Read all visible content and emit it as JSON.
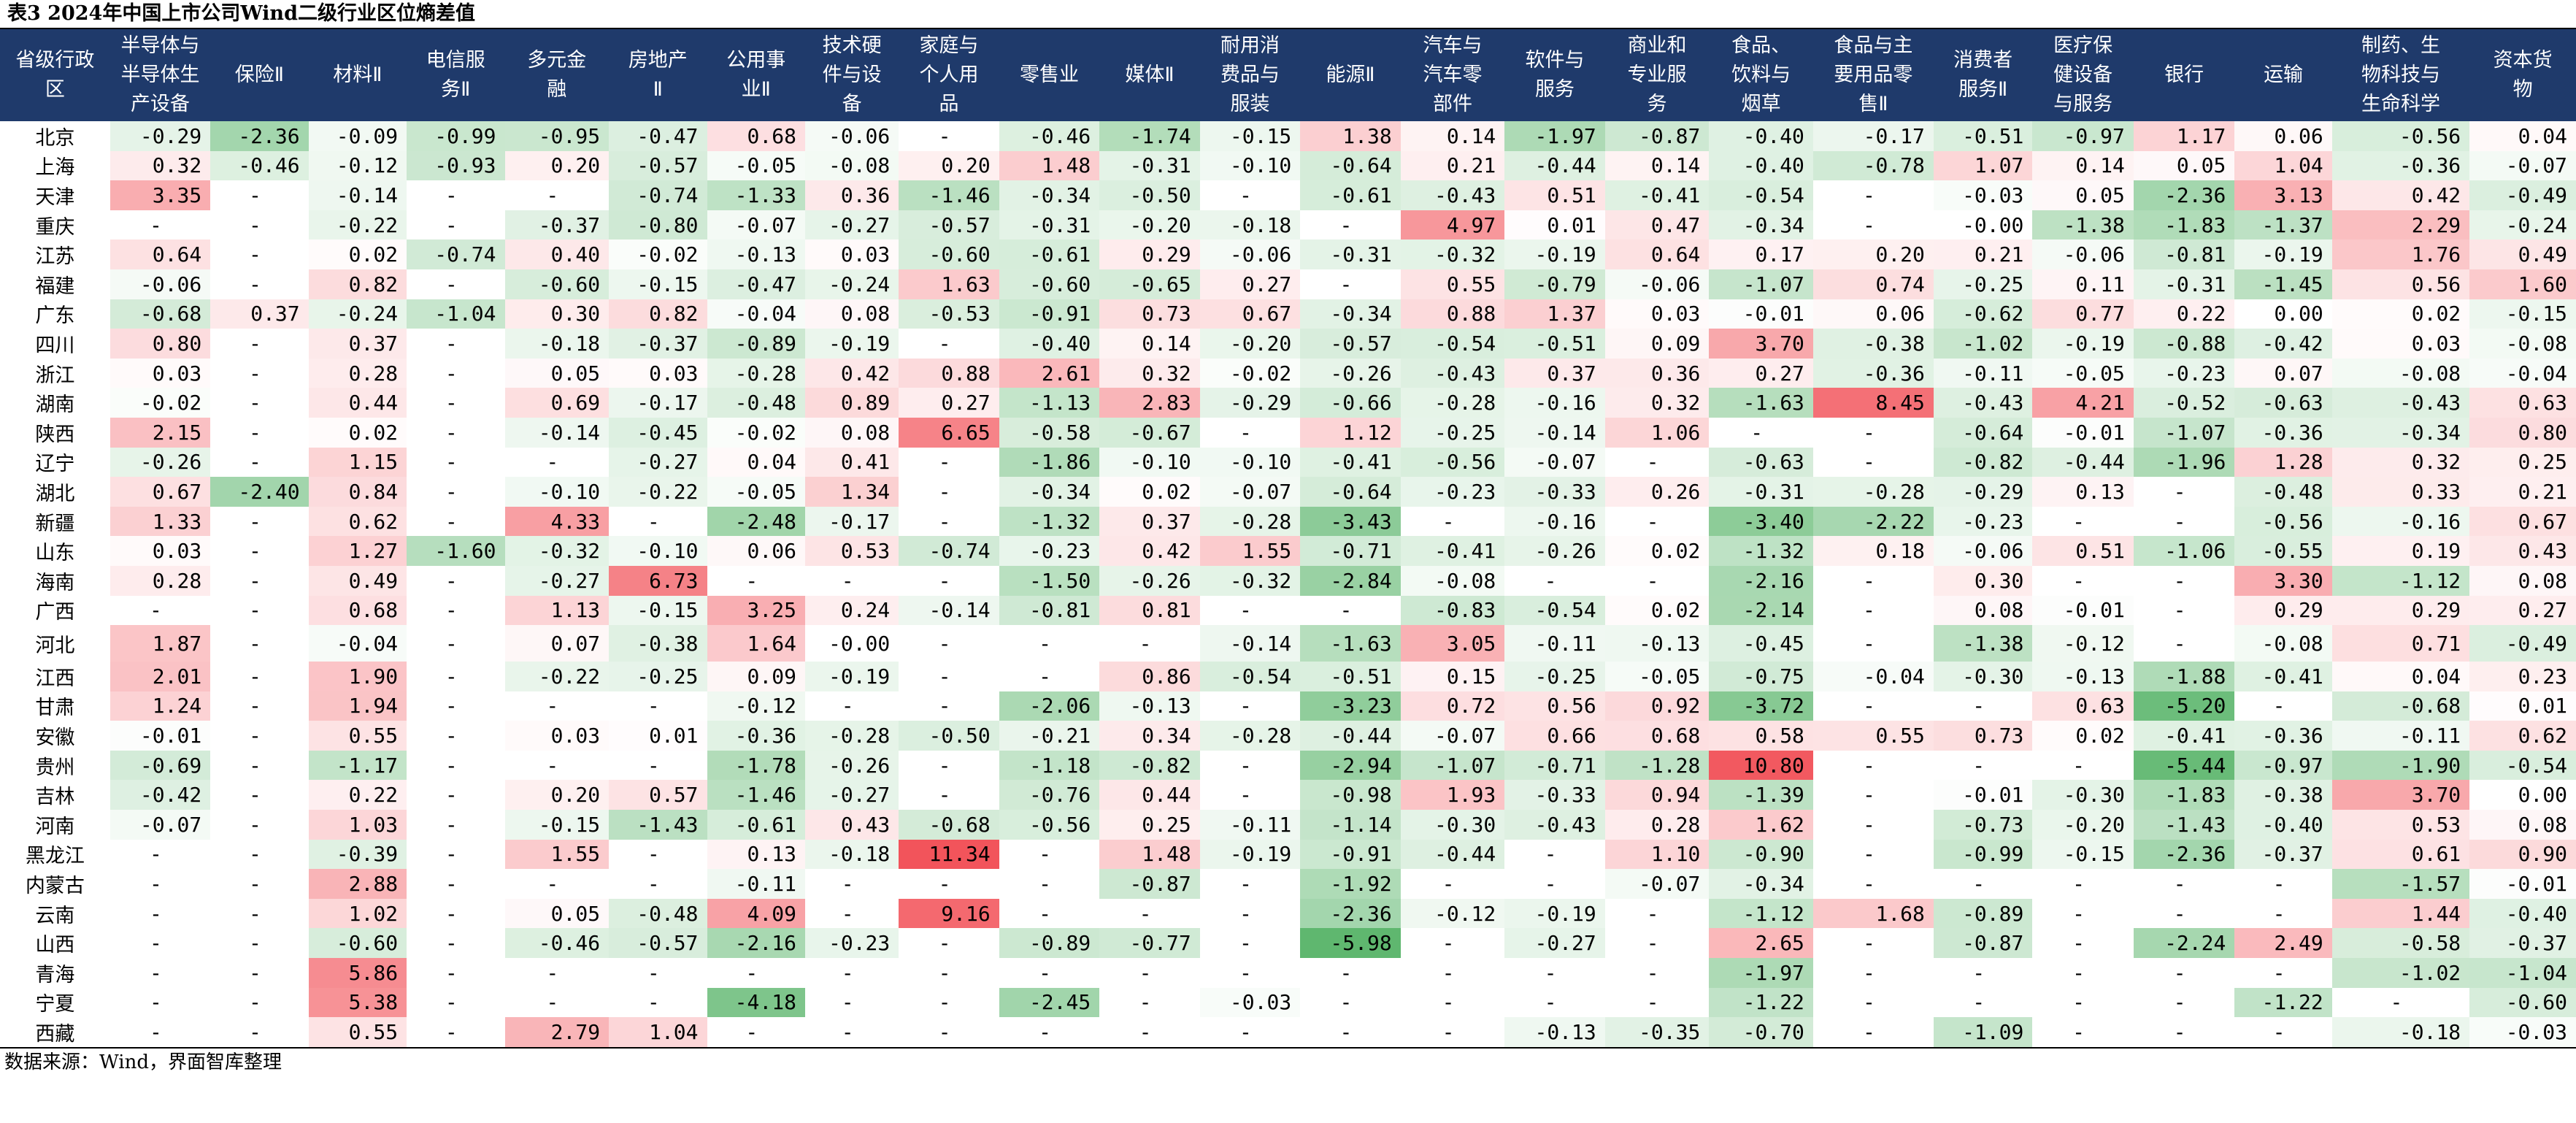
{
  "title": "表3 2024年中国上市公司Wind二级行业区位熵差值",
  "source": "数据来源：Wind，界面智库整理",
  "colors": {
    "header_bg": "#1f3a6b",
    "header_text": "#ffffff",
    "positive_max": "#f2545b",
    "negative_max": "#5fb76f"
  },
  "table": {
    "columns": [
      "省级行政\n区",
      "半导体与\n半导体生\n产设备",
      "保险Ⅱ",
      "材料Ⅱ",
      "电信服\n务Ⅱ",
      "多元金\n融",
      "房地产\nⅡ",
      "公用事\n业Ⅱ",
      "技术硬\n件与设\n备",
      "家庭与\n个人用\n品",
      "零售业",
      "媒体Ⅱ",
      "耐用消\n费品与\n服装",
      "能源Ⅱ",
      "汽车与\n汽车零\n部件",
      "软件与\n服务",
      "商业和\n专业服\n务",
      "食品、\n饮料与\n烟草",
      "食品与主\n要用品零\n售Ⅱ",
      "消费者\n服务Ⅱ",
      "医疗保\n健设备\n与服务",
      "银行",
      "运输",
      "制药、生\n物科技与\n生命科学",
      "资本货\n物"
    ],
    "rows": [
      [
        "北京",
        "-0.29",
        "-2.36",
        "-0.09",
        "-0.99",
        "-0.95",
        "-0.47",
        "0.68",
        "-0.06",
        "-",
        "-0.46",
        "-1.74",
        "-0.15",
        "1.38",
        "0.14",
        "-1.97",
        "-0.87",
        "-0.40",
        "-0.17",
        "-0.51",
        "-0.97",
        "1.17",
        "0.06",
        "-0.56",
        "0.04"
      ],
      [
        "上海",
        "0.32",
        "-0.46",
        "-0.12",
        "-0.93",
        "0.20",
        "-0.57",
        "-0.05",
        "-0.08",
        "0.20",
        "1.48",
        "-0.31",
        "-0.10",
        "-0.64",
        "0.21",
        "-0.44",
        "0.14",
        "-0.40",
        "-0.78",
        "1.07",
        "0.14",
        "0.05",
        "1.04",
        "-0.36",
        "-0.07"
      ],
      [
        "天津",
        "3.35",
        "-",
        "-0.14",
        "-",
        "-",
        "-0.74",
        "-1.33",
        "0.36",
        "-1.46",
        "-0.34",
        "-0.50",
        "-",
        "-0.61",
        "-0.43",
        "0.51",
        "-0.41",
        "-0.54",
        "-",
        "-0.03",
        "0.05",
        "-2.36",
        "3.13",
        "0.42",
        "-0.49"
      ],
      [
        "重庆",
        "-",
        "-",
        "-0.22",
        "-",
        "-0.37",
        "-0.80",
        "-0.07",
        "-0.27",
        "-0.57",
        "-0.31",
        "-0.20",
        "-0.18",
        "-",
        "4.97",
        "0.01",
        "0.47",
        "-0.34",
        "-",
        "-0.00",
        "-1.38",
        "-1.83",
        "-1.37",
        "2.29",
        "-0.24"
      ],
      [
        "江苏",
        "0.64",
        "-",
        "0.02",
        "-0.74",
        "0.40",
        "-0.02",
        "-0.13",
        "0.03",
        "-0.60",
        "-0.61",
        "0.29",
        "-0.06",
        "-0.31",
        "-0.32",
        "-0.19",
        "0.64",
        "0.17",
        "0.20",
        "0.21",
        "-0.06",
        "-0.81",
        "-0.19",
        "1.76",
        "0.49"
      ],
      [
        "福建",
        "-0.06",
        "-",
        "0.82",
        "-",
        "-0.60",
        "-0.15",
        "-0.47",
        "-0.24",
        "1.63",
        "-0.60",
        "-0.65",
        "0.27",
        "-",
        "0.55",
        "-0.79",
        "-0.06",
        "-1.07",
        "0.74",
        "-0.25",
        "0.11",
        "-0.31",
        "-1.45",
        "0.56",
        "1.60"
      ],
      [
        "广东",
        "-0.68",
        "0.37",
        "-0.24",
        "-1.04",
        "0.30",
        "0.82",
        "-0.04",
        "0.08",
        "-0.53",
        "-0.91",
        "0.73",
        "0.67",
        "-0.34",
        "0.88",
        "1.37",
        "0.03",
        "-0.01",
        "0.06",
        "-0.62",
        "0.77",
        "0.22",
        "0.00",
        "0.02",
        "-0.15"
      ],
      [
        "四川",
        "0.80",
        "-",
        "0.37",
        "-",
        "-0.18",
        "-0.37",
        "-0.89",
        "-0.19",
        "-",
        "-0.40",
        "0.14",
        "-0.20",
        "-0.57",
        "-0.54",
        "-0.51",
        "0.09",
        "3.70",
        "-0.38",
        "-1.02",
        "-0.19",
        "-0.88",
        "-0.42",
        "0.03",
        "-0.08"
      ],
      [
        "浙江",
        "0.03",
        "-",
        "0.28",
        "-",
        "0.05",
        "0.03",
        "-0.28",
        "0.42",
        "0.88",
        "2.61",
        "0.32",
        "-0.02",
        "-0.26",
        "-0.43",
        "0.37",
        "0.36",
        "0.27",
        "-0.36",
        "-0.11",
        "-0.05",
        "-0.23",
        "0.07",
        "-0.08",
        "-0.04"
      ],
      [
        "湖南",
        "-0.02",
        "-",
        "0.44",
        "-",
        "0.69",
        "-0.17",
        "-0.48",
        "0.89",
        "0.27",
        "-1.13",
        "2.83",
        "-0.29",
        "-0.66",
        "-0.28",
        "-0.16",
        "0.32",
        "-1.63",
        "8.45",
        "-0.43",
        "4.21",
        "-0.52",
        "-0.63",
        "-0.43",
        "0.63"
      ],
      [
        "陕西",
        "2.15",
        "-",
        "0.02",
        "-",
        "-0.14",
        "-0.45",
        "-0.02",
        "0.08",
        "6.65",
        "-0.58",
        "-0.67",
        "-",
        "1.12",
        "-0.25",
        "-0.14",
        "1.06",
        "-",
        "-",
        "-0.64",
        "-0.01",
        "-1.07",
        "-0.36",
        "-0.34",
        "0.80"
      ],
      [
        "辽宁",
        "-0.26",
        "-",
        "1.15",
        "-",
        "-",
        "-0.27",
        "0.04",
        "0.41",
        "-",
        "-1.86",
        "-0.10",
        "-0.10",
        "-0.41",
        "-0.56",
        "-0.07",
        "-",
        "-0.63",
        "-",
        "-0.82",
        "-0.44",
        "-1.96",
        "1.28",
        "0.32",
        "0.25"
      ],
      [
        "湖北",
        "0.67",
        "-2.40",
        "0.84",
        "-",
        "-0.10",
        "-0.22",
        "-0.05",
        "1.34",
        "-",
        "-0.34",
        "0.02",
        "-0.07",
        "-0.64",
        "-0.23",
        "-0.33",
        "0.26",
        "-0.31",
        "-0.28",
        "-0.29",
        "0.13",
        "-",
        "-0.48",
        "0.33",
        "0.21"
      ],
      [
        "新疆",
        "1.33",
        "-",
        "0.62",
        "-",
        "4.33",
        "-",
        "-2.48",
        "-0.17",
        "-",
        "-1.32",
        "0.37",
        "-0.28",
        "-3.43",
        "-",
        "-0.16",
        "-",
        "-3.40",
        "-2.22",
        "-0.23",
        "-",
        "-",
        "-0.56",
        "-0.16",
        "0.67"
      ],
      [
        "山东",
        "0.03",
        "-",
        "1.27",
        "-1.60",
        "-0.32",
        "-0.10",
        "0.06",
        "0.53",
        "-0.74",
        "-0.23",
        "0.42",
        "1.55",
        "-0.71",
        "-0.41",
        "-0.26",
        "0.02",
        "-1.32",
        "0.18",
        "-0.06",
        "0.51",
        "-1.06",
        "-0.55",
        "0.19",
        "0.43"
      ],
      [
        "海南",
        "0.28",
        "-",
        "0.49",
        "-",
        "-0.27",
        "6.73",
        "-",
        "-",
        "-",
        "-1.50",
        "-0.26",
        "-0.32",
        "-2.84",
        "-0.08",
        "-",
        "-",
        "-2.16",
        "-",
        "0.30",
        "-",
        "-",
        "3.30",
        "-1.12",
        "0.08"
      ],
      [
        "广西",
        "-",
        "-",
        "0.68",
        "-",
        "1.13",
        "-0.15",
        "3.25",
        "0.24",
        "-0.14",
        "-0.81",
        "0.81",
        "-",
        "-",
        "-0.83",
        "-0.54",
        "0.02",
        "-2.14",
        "-",
        "0.08",
        "-0.01",
        "-",
        "0.29",
        "0.29",
        "0.27"
      ],
      [
        "河北",
        "1.87",
        "-",
        "-0.04",
        "-",
        "0.07",
        "-0.38",
        "1.64",
        "-0.00",
        "-",
        "-",
        "-",
        "-0.14",
        "-1.63",
        "3.05",
        "-0.11",
        "-0.13",
        "-0.45",
        "-",
        "-1.38",
        "-0.12",
        "-",
        "-0.08",
        "0.71",
        "-0.49"
      ],
      [
        "江西",
        "2.01",
        "-",
        "1.90",
        "-",
        "-0.22",
        "-0.25",
        "0.09",
        "-0.19",
        "-",
        "-",
        "0.86",
        "-0.54",
        "-0.51",
        "0.15",
        "-0.25",
        "-0.05",
        "-0.75",
        "-0.04",
        "-0.30",
        "-0.13",
        "-1.88",
        "-0.41",
        "0.04",
        "0.23"
      ],
      [
        "甘肃",
        "1.24",
        "-",
        "1.94",
        "-",
        "-",
        "-",
        "-0.12",
        "-",
        "-",
        "-2.06",
        "-0.13",
        "-",
        "-3.23",
        "0.72",
        "0.56",
        "0.92",
        "-3.72",
        "-",
        "-",
        "0.63",
        "-5.20",
        "-",
        "-0.68",
        "0.01"
      ],
      [
        "安徽",
        "-0.01",
        "-",
        "0.55",
        "-",
        "0.03",
        "0.01",
        "-0.36",
        "-0.28",
        "-0.50",
        "-0.21",
        "0.34",
        "-0.28",
        "-0.44",
        "-0.07",
        "0.66",
        "0.68",
        "0.58",
        "0.55",
        "0.73",
        "0.02",
        "-0.41",
        "-0.36",
        "-0.11",
        "0.62"
      ],
      [
        "贵州",
        "-0.69",
        "-",
        "-1.17",
        "-",
        "-",
        "-",
        "-1.78",
        "-0.26",
        "-",
        "-1.18",
        "-0.82",
        "-",
        "-2.94",
        "-1.07",
        "-0.71",
        "-1.28",
        "10.80",
        "-",
        "-",
        "-",
        "-5.44",
        "-0.97",
        "-1.90",
        "-0.54"
      ],
      [
        "吉林",
        "-0.42",
        "-",
        "0.22",
        "-",
        "0.20",
        "0.57",
        "-1.46",
        "-0.27",
        "-",
        "-0.76",
        "0.44",
        "-",
        "-0.98",
        "1.93",
        "-0.33",
        "0.94",
        "-1.39",
        "-",
        "-0.01",
        "-0.30",
        "-1.83",
        "-0.38",
        "3.70",
        "0.00"
      ],
      [
        "河南",
        "-0.07",
        "-",
        "1.03",
        "-",
        "-0.15",
        "-1.43",
        "-0.61",
        "0.43",
        "-0.68",
        "-0.56",
        "0.25",
        "-0.11",
        "-1.14",
        "-0.30",
        "-0.43",
        "0.28",
        "1.62",
        "-",
        "-0.73",
        "-0.20",
        "-1.43",
        "-0.40",
        "0.53",
        "0.08"
      ],
      [
        "黑龙江",
        "-",
        "-",
        "-0.39",
        "-",
        "1.55",
        "-",
        "0.13",
        "-0.18",
        "11.34",
        "-",
        "1.48",
        "-0.19",
        "-0.91",
        "-0.44",
        "-",
        "1.10",
        "-0.90",
        "-",
        "-0.99",
        "-0.15",
        "-2.36",
        "-0.37",
        "0.61",
        "0.90"
      ],
      [
        "内蒙古",
        "-",
        "-",
        "2.88",
        "-",
        "-",
        "-",
        "-0.11",
        "-",
        "-",
        "-",
        "-0.87",
        "-",
        "-1.92",
        "-",
        "-",
        "-0.07",
        "-0.34",
        "-",
        "-",
        "-",
        "-",
        "-",
        "-1.57",
        "-0.01"
      ],
      [
        "云南",
        "-",
        "-",
        "1.02",
        "-",
        "0.05",
        "-0.48",
        "4.09",
        "-",
        "9.16",
        "-",
        "-",
        "-",
        "-2.36",
        "-0.12",
        "-0.19",
        "-",
        "-1.12",
        "1.68",
        "-0.89",
        "-",
        "-",
        "-",
        "1.44",
        "-0.40"
      ],
      [
        "山西",
        "-",
        "-",
        "-0.60",
        "-",
        "-0.46",
        "-0.57",
        "-2.16",
        "-0.23",
        "-",
        "-0.89",
        "-0.77",
        "-",
        "-5.98",
        "-",
        "-0.27",
        "-",
        "2.65",
        "-",
        "-0.87",
        "-",
        "-2.24",
        "2.49",
        "-0.58",
        "-0.37"
      ],
      [
        "青海",
        "-",
        "-",
        "5.86",
        "-",
        "-",
        "-",
        "-",
        "-",
        "-",
        "-",
        "-",
        "-",
        "-",
        "-",
        "-",
        "-",
        "-1.97",
        "-",
        "-",
        "-",
        "-",
        "-",
        "-1.02",
        "-1.04"
      ],
      [
        "宁夏",
        "-",
        "-",
        "5.38",
        "-",
        "-",
        "-",
        "-4.18",
        "-",
        "-",
        "-2.45",
        "-",
        "-0.03",
        "-",
        "-",
        "-",
        "-",
        "-1.22",
        "-",
        "-",
        "-",
        "-",
        "-1.22",
        "-",
        "-0.60"
      ],
      [
        "西藏",
        "-",
        "-",
        "0.55",
        "-",
        "2.79",
        "1.04",
        "-",
        "-",
        "-",
        "-",
        "-",
        "-",
        "-",
        "-",
        "-0.13",
        "-0.35",
        "-0.70",
        "-",
        "-1.09",
        "-",
        "-",
        "-",
        "-0.18",
        "-0.03"
      ]
    ]
  }
}
